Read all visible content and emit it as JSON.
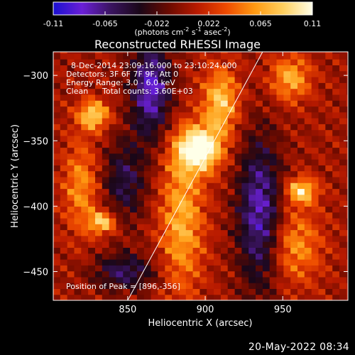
{
  "colorbar": {
    "ticks": [
      "-0.11",
      "-0.065",
      "-0.022",
      "0.022",
      "0.065",
      "0.11"
    ],
    "units_main": "(photons cm",
    "units_exp1": "-2",
    "units_mid1": " s",
    "units_exp2": "-1",
    "units_mid2": " asec",
    "units_exp3": "-2",
    "units_end": ")",
    "colors": [
      "#1a10d0",
      "#6a1fd6",
      "#3a1460",
      "#1a0718",
      "#6a0a00",
      "#b81a00",
      "#ee4a00",
      "#ff9a12",
      "#ffd060",
      "#ffffe8"
    ]
  },
  "chart_data": {
    "type": "heatmap",
    "title": "Reconstructed RHESSI Image",
    "xlabel": "Heliocentric X (arcsec)",
    "ylabel": "Heliocentric Y (arcsec)",
    "xlim": [
      802,
      992
    ],
    "ylim": [
      -472,
      -282
    ],
    "xticks": [
      850,
      900,
      950
    ],
    "yticks": [
      -300,
      -350,
      -400,
      -450
    ],
    "info_lines": [
      "8-Dec-2014 23:09:16.000 to 23:10:24.000",
      "Detectors: 3F 6F 7F 9F, Att 0",
      "Energy Range: 3.0 - 6.0 keV"
    ],
    "clean_label": "Clean",
    "counts_label": "Total counts: 3.60E+03",
    "peak_label": "Position of Peak = [896,-356]",
    "peak": [
      896,
      -356
    ],
    "limb_line": [
      [
        850,
        -472
      ],
      [
        937,
        -282
      ]
    ],
    "bright_sources": [
      {
        "x": 896,
        "y": -356,
        "amp": 1.0,
        "sx": 10,
        "sy": 12
      },
      {
        "x": 910,
        "y": -320,
        "amp": 0.65,
        "sx": 8,
        "sy": 18
      },
      {
        "x": 885,
        "y": -410,
        "amp": 0.55,
        "sx": 10,
        "sy": 40
      },
      {
        "x": 828,
        "y": -330,
        "amp": 0.7,
        "sx": 7,
        "sy": 8
      },
      {
        "x": 834,
        "y": -412,
        "amp": 0.7,
        "sx": 6,
        "sy": 6
      },
      {
        "x": 955,
        "y": -302,
        "amp": 0.55,
        "sx": 9,
        "sy": 12
      },
      {
        "x": 962,
        "y": -388,
        "amp": 0.7,
        "sx": 7,
        "sy": 7
      },
      {
        "x": 820,
        "y": -385,
        "amp": 0.45,
        "sx": 8,
        "sy": 25
      },
      {
        "x": 958,
        "y": -430,
        "amp": 0.45,
        "sx": 12,
        "sy": 20
      }
    ],
    "dark_regions": [
      {
        "x": 865,
        "y": -310,
        "amp": -0.75,
        "sx": 9,
        "sy": 26
      },
      {
        "x": 935,
        "y": -405,
        "amp": -0.7,
        "sx": 10,
        "sy": 40
      },
      {
        "x": 848,
        "y": -450,
        "amp": -0.5,
        "sx": 14,
        "sy": 10
      },
      {
        "x": 848,
        "y": -380,
        "amp": -0.45,
        "sx": 10,
        "sy": 22
      }
    ]
  },
  "timestamp": "20-May-2022 08:34"
}
